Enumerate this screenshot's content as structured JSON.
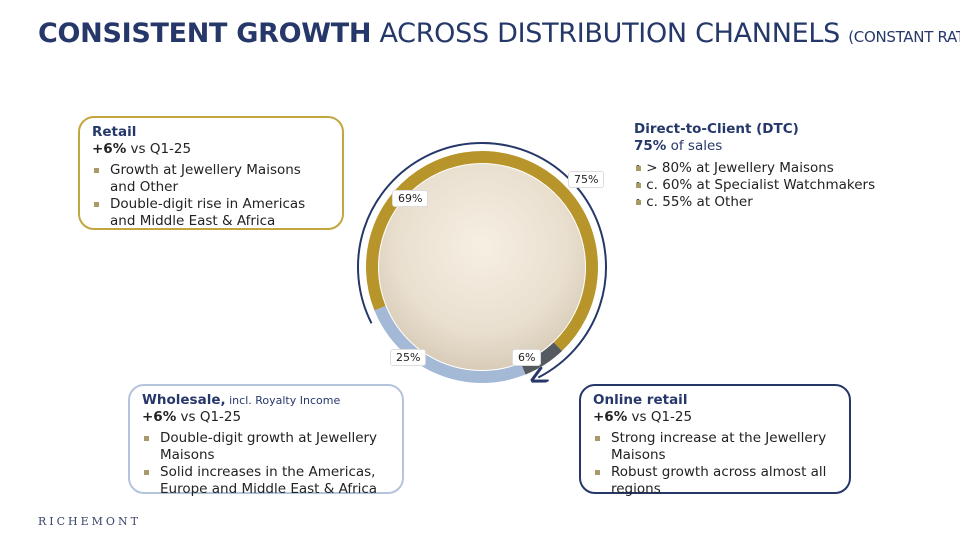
{
  "title": {
    "bold": "CONSISTENT GROWTH",
    "rest": " ACROSS DISTRIBUTION CHANNELS",
    "note": "(CONSTANT RATES)"
  },
  "retail": {
    "heading": "Retail",
    "growth": "+6%",
    "vs": " vs Q1-25",
    "bullets": [
      "Growth at Jewellery Maisons and Other",
      "Double-digit rise in Americas and Middle East & Africa"
    ]
  },
  "wholesale": {
    "heading": "Wholesale,",
    "heading_note": " incl. Royalty Income",
    "growth": "+6%",
    "vs": " vs Q1-25",
    "bullets": [
      "Double-digit growth at Jewellery Maisons",
      "Solid increases in the Americas, Europe and Middle East & Africa"
    ]
  },
  "online": {
    "heading": "Online retail",
    "growth": "+6%",
    "vs": " vs Q1-25",
    "bullets": [
      "Strong increase at the Jewellery Maisons",
      "Robust growth across almost all regions"
    ]
  },
  "dtc": {
    "heading": "Direct-to-Client (DTC)",
    "share": "75%",
    "share_text": " of sales",
    "bullets": [
      "• > 80% at Jewellery Maisons",
      "• c. 60% at Specialist Watchmakers",
      "• c. 55% at Other"
    ]
  },
  "chart_data": {
    "type": "pie",
    "segments": [
      {
        "label": "69%",
        "value": 69,
        "color": "#b8952a"
      },
      {
        "label": "6%",
        "value": 6,
        "color": "#555a60"
      },
      {
        "label": "25%",
        "value": 25,
        "color": "#a3b9d5"
      }
    ],
    "dtc_arc": {
      "label": "75%",
      "value": 75,
      "color": "#26386a"
    }
  },
  "logo": "RICHEMONT"
}
